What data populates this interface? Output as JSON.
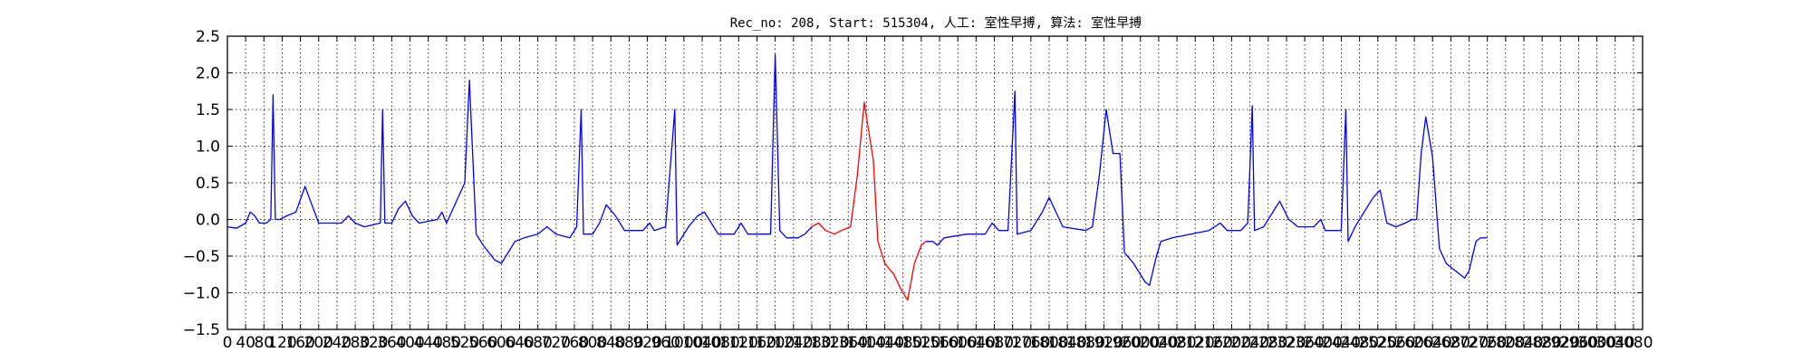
{
  "chart_data": {
    "type": "line",
    "title": "Rec_no: 208, Start: 515304, 人工: 室性早搏, 算法: 室性早搏",
    "xlabel": "",
    "ylabel": "",
    "xlim": [
      0,
      3100
    ],
    "ylim": [
      -1.5,
      2.5
    ],
    "grid": true,
    "y_ticks": [
      "2.5",
      "2.0",
      "1.5",
      "1.0",
      "0.5",
      "0.0",
      "−0.5",
      "−1.0",
      "−1.5"
    ],
    "y_tick_values": [
      2.5,
      2.0,
      1.5,
      1.0,
      0.5,
      0.0,
      -0.5,
      -1.0,
      -1.5
    ],
    "x_tick_values": [
      0,
      40,
      80,
      120,
      160,
      200,
      240,
      280,
      320,
      360,
      400,
      440,
      480,
      520,
      560,
      600,
      640,
      680,
      720,
      760,
      800,
      840,
      880,
      920,
      960,
      1000,
      1040,
      1080,
      1120,
      1160,
      1200,
      1240,
      1280,
      1320,
      1360,
      1400,
      1440,
      1480,
      1520,
      1560,
      1600,
      1640,
      1680,
      1720,
      1760,
      1800,
      1840,
      1880,
      1920,
      1960,
      2000,
      2040,
      2080,
      2120,
      2160,
      2200,
      2240,
      2280,
      2320,
      2360,
      2400,
      2440,
      2480,
      2520,
      2560,
      2600,
      2640,
      2680,
      2720,
      2760,
      2800,
      2840,
      2880,
      2920,
      2960,
      3000,
      3040,
      3080
    ],
    "x_tick_labels": [
      "0",
      "40",
      "80",
      "120",
      "160",
      "200",
      "240",
      "280",
      "320",
      "360",
      "400",
      "440",
      "480",
      "520",
      "560",
      "600",
      "640",
      "680",
      "720",
      "760",
      "800",
      "840",
      "880",
      "920",
      "960",
      "1000",
      "1040",
      "1080",
      "1120",
      "1160",
      "1200",
      "1240",
      "1280",
      "1320",
      "1360",
      "1400",
      "1440",
      "1480",
      "1520",
      "1560",
      "1600",
      "1640",
      "1680",
      "1720",
      "1760",
      "1800",
      "1840",
      "1880",
      "1920",
      "1960",
      "2000",
      "2040",
      "2080",
      "2120",
      "2160",
      "2200",
      "2240",
      "2280",
      "2320",
      "2360",
      "2400",
      "2440",
      "2480",
      "2520",
      "2560",
      "2600",
      "2640",
      "2680",
      "2720",
      "2760",
      "2800",
      "2840",
      "2880",
      "2920",
      "2960",
      "3000",
      "3040",
      "3080"
    ],
    "series": [
      {
        "color": "#0000ff",
        "points": [
          [
            0,
            -0.1
          ],
          [
            20,
            -0.12
          ],
          [
            40,
            -0.05
          ],
          [
            50,
            0.1
          ],
          [
            60,
            0.05
          ],
          [
            70,
            -0.05
          ],
          [
            85,
            -0.05
          ],
          [
            95,
            0.0
          ],
          [
            100,
            1.7
          ],
          [
            105,
            0.0
          ],
          [
            115,
            0.0
          ],
          [
            130,
            0.05
          ],
          [
            150,
            0.1
          ],
          [
            170,
            0.45
          ],
          [
            185,
            0.2
          ],
          [
            200,
            -0.05
          ],
          [
            230,
            -0.05
          ],
          [
            250,
            -0.05
          ],
          [
            265,
            0.05
          ],
          [
            280,
            -0.05
          ],
          [
            300,
            -0.1
          ],
          [
            335,
            -0.05
          ],
          [
            340,
            1.5
          ],
          [
            345,
            -0.05
          ],
          [
            360,
            -0.05
          ],
          [
            375,
            0.15
          ],
          [
            390,
            0.25
          ],
          [
            405,
            0.05
          ],
          [
            420,
            -0.05
          ],
          [
            460,
            0.0
          ],
          [
            470,
            0.1
          ],
          [
            480,
            -0.05
          ],
          [
            520,
            0.5
          ],
          [
            530,
            1.9
          ],
          [
            545,
            -0.2
          ],
          [
            560,
            -0.35
          ],
          [
            585,
            -0.55
          ],
          [
            600,
            -0.6
          ],
          [
            615,
            -0.45
          ],
          [
            630,
            -0.3
          ],
          [
            650,
            -0.25
          ],
          [
            680,
            -0.2
          ],
          [
            700,
            -0.1
          ],
          [
            720,
            -0.2
          ],
          [
            750,
            -0.25
          ],
          [
            765,
            -0.1
          ],
          [
            775,
            1.5
          ],
          [
            780,
            -0.2
          ],
          [
            800,
            -0.2
          ],
          [
            815,
            -0.05
          ],
          [
            830,
            0.2
          ],
          [
            850,
            0.05
          ],
          [
            870,
            -0.15
          ],
          [
            910,
            -0.15
          ],
          [
            925,
            -0.05
          ],
          [
            935,
            -0.15
          ],
          [
            960,
            -0.1
          ],
          [
            980,
            1.5
          ],
          [
            985,
            -0.35
          ],
          [
            1000,
            -0.2
          ],
          [
            1010,
            -0.1
          ],
          [
            1030,
            0.05
          ],
          [
            1045,
            0.1
          ],
          [
            1060,
            -0.05
          ],
          [
            1075,
            -0.2
          ],
          [
            1110,
            -0.2
          ],
          [
            1125,
            -0.05
          ],
          [
            1140,
            -0.2
          ],
          [
            1190,
            -0.2
          ],
          [
            1200,
            2.25
          ],
          [
            1210,
            -0.15
          ],
          [
            1225,
            -0.25
          ],
          [
            1250,
            -0.25
          ],
          [
            1265,
            -0.2
          ],
          [
            1280,
            -0.1
          ]
        ]
      },
      {
        "color": "#ff0000",
        "points": [
          [
            1280,
            -0.1
          ],
          [
            1295,
            -0.05
          ],
          [
            1310,
            -0.15
          ],
          [
            1330,
            -0.2
          ],
          [
            1345,
            -0.15
          ],
          [
            1365,
            -0.1
          ],
          [
            1380,
            0.6
          ],
          [
            1395,
            1.6
          ],
          [
            1405,
            1.2
          ],
          [
            1415,
            0.8
          ],
          [
            1425,
            -0.3
          ],
          [
            1440,
            -0.6
          ],
          [
            1460,
            -0.75
          ],
          [
            1475,
            -0.95
          ],
          [
            1490,
            -1.1
          ],
          [
            1505,
            -0.6
          ],
          [
            1520,
            -0.35
          ],
          [
            1530,
            -0.3
          ]
        ]
      },
      {
        "color": "#0000ff",
        "points": [
          [
            1530,
            -0.3
          ],
          [
            1545,
            -0.3
          ],
          [
            1555,
            -0.35
          ],
          [
            1570,
            -0.25
          ],
          [
            1620,
            -0.2
          ],
          [
            1660,
            -0.2
          ],
          [
            1675,
            -0.05
          ],
          [
            1690,
            -0.15
          ],
          [
            1710,
            -0.15
          ],
          [
            1725,
            1.75
          ],
          [
            1730,
            -0.2
          ],
          [
            1760,
            -0.15
          ],
          [
            1785,
            0.1
          ],
          [
            1800,
            0.3
          ],
          [
            1815,
            0.1
          ],
          [
            1830,
            -0.1
          ],
          [
            1880,
            -0.15
          ],
          [
            1895,
            -0.1
          ],
          [
            1910,
            0.6
          ],
          [
            1925,
            1.5
          ],
          [
            1940,
            0.9
          ],
          [
            1955,
            0.9
          ],
          [
            1965,
            -0.45
          ],
          [
            1985,
            -0.6
          ],
          [
            2010,
            -0.85
          ],
          [
            2020,
            -0.9
          ],
          [
            2035,
            -0.5
          ],
          [
            2045,
            -0.3
          ],
          [
            2070,
            -0.25
          ],
          [
            2110,
            -0.2
          ],
          [
            2150,
            -0.15
          ],
          [
            2175,
            -0.05
          ],
          [
            2190,
            -0.15
          ],
          [
            2220,
            -0.15
          ],
          [
            2235,
            -0.05
          ],
          [
            2245,
            1.55
          ],
          [
            2250,
            -0.15
          ],
          [
            2270,
            -0.1
          ],
          [
            2290,
            0.1
          ],
          [
            2305,
            0.25
          ],
          [
            2325,
            0.0
          ],
          [
            2345,
            -0.1
          ],
          [
            2380,
            -0.1
          ],
          [
            2395,
            0.0
          ],
          [
            2405,
            -0.15
          ],
          [
            2430,
            -0.15
          ],
          [
            2440,
            -0.15
          ],
          [
            2450,
            1.5
          ],
          [
            2455,
            -0.3
          ],
          [
            2470,
            -0.1
          ],
          [
            2490,
            0.1
          ],
          [
            2510,
            0.3
          ],
          [
            2525,
            0.4
          ],
          [
            2540,
            -0.05
          ],
          [
            2560,
            -0.1
          ],
          [
            2580,
            -0.05
          ],
          [
            2595,
            0.0
          ],
          [
            2605,
            0.0
          ],
          [
            2615,
            0.9
          ],
          [
            2625,
            1.4
          ],
          [
            2640,
            0.85
          ],
          [
            2655,
            -0.4
          ],
          [
            2670,
            -0.6
          ],
          [
            2690,
            -0.7
          ],
          [
            2710,
            -0.8
          ],
          [
            2720,
            -0.7
          ],
          [
            2735,
            -0.3
          ],
          [
            2745,
            -0.25
          ],
          [
            2760,
            -0.25
          ]
        ]
      }
    ]
  }
}
